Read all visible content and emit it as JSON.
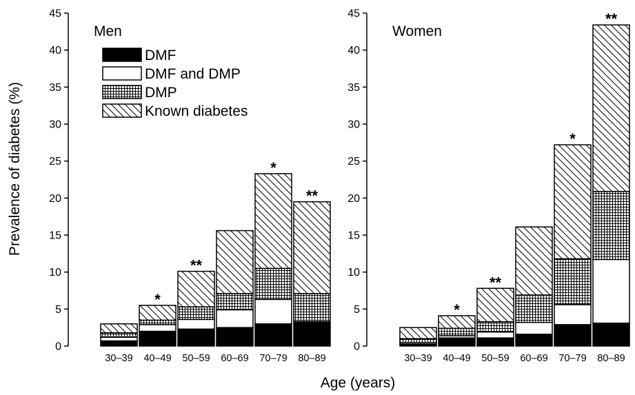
{
  "figure": {
    "ylabel": "Prevalence of diabetes (%)",
    "xlabel": "Age (years)"
  },
  "legend": {
    "placement": "top-left of Men panel",
    "items": [
      {
        "label": "DMF",
        "pattern": "solid-black"
      },
      {
        "label": "DMF and DMP",
        "pattern": "white"
      },
      {
        "label": "DMP",
        "pattern": "grid"
      },
      {
        "label": "Known diabetes",
        "pattern": "diagonal-hatch"
      }
    ]
  },
  "chart_data": [
    {
      "type": "bar",
      "stacked": true,
      "title": "Men",
      "xlabel": "Age (years)",
      "ylabel": "Prevalence of diabetes (%)",
      "ylim": [
        0,
        45
      ],
      "yticks": [
        0,
        5,
        10,
        15,
        20,
        25,
        30,
        35,
        40,
        45
      ],
      "categories": [
        "30–39",
        "40–49",
        "50–59",
        "60–69",
        "70–79",
        "80–89"
      ],
      "series": [
        {
          "name": "DMF",
          "values": [
            0.7,
            2.0,
            2.3,
            2.5,
            3.0,
            3.3
          ]
        },
        {
          "name": "DMF and DMP",
          "values": [
            0.5,
            0.9,
            1.3,
            2.4,
            3.3,
            0.0
          ]
        },
        {
          "name": "DMP",
          "values": [
            0.6,
            0.6,
            1.7,
            2.2,
            4.2,
            3.8
          ]
        },
        {
          "name": "Known diabetes",
          "values": [
            1.2,
            2.0,
            4.8,
            8.5,
            12.8,
            12.4
          ]
        }
      ],
      "annotations": [
        "",
        "*",
        "**",
        "",
        "*",
        "**"
      ]
    },
    {
      "type": "bar",
      "stacked": true,
      "title": "Women",
      "xlabel": "Age (years)",
      "ylabel": "Prevalence of diabetes (%)",
      "ylim": [
        0,
        45
      ],
      "yticks": [
        0,
        5,
        10,
        15,
        20,
        25,
        30,
        35,
        40,
        45
      ],
      "categories": [
        "30–39",
        "40–49",
        "50–59",
        "60–69",
        "70–79",
        "80–89"
      ],
      "series": [
        {
          "name": "DMF",
          "values": [
            0.3,
            1.1,
            1.1,
            1.6,
            2.9,
            3.1
          ]
        },
        {
          "name": "DMF and DMP",
          "values": [
            0.2,
            0.3,
            0.8,
            1.6,
            2.7,
            8.6
          ]
        },
        {
          "name": "DMP",
          "values": [
            0.5,
            1.0,
            1.4,
            3.7,
            6.2,
            9.2
          ]
        },
        {
          "name": "Known diabetes",
          "values": [
            1.5,
            1.7,
            4.5,
            9.2,
            15.4,
            22.5
          ]
        }
      ],
      "annotations": [
        "",
        "*",
        "**",
        "",
        "*",
        "**"
      ]
    }
  ]
}
